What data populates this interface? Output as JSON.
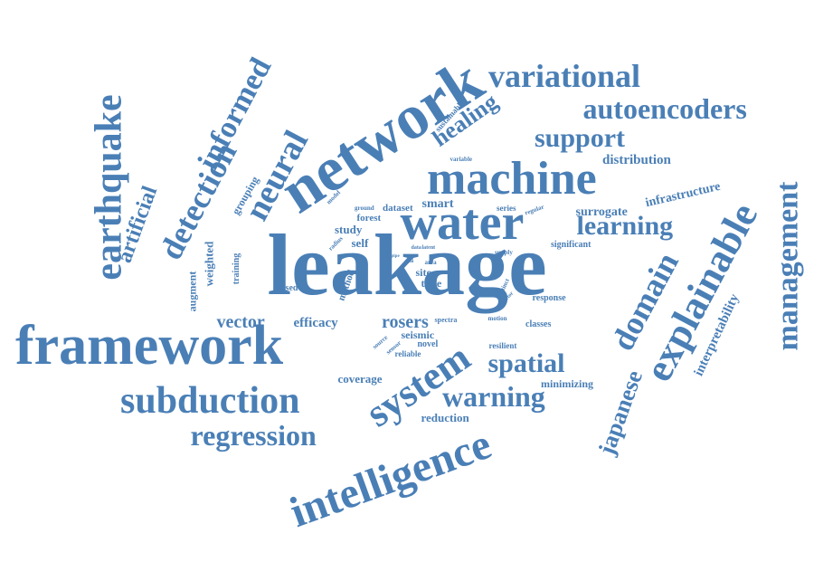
{
  "cloud": {
    "color": "#4a7fb6",
    "words": [
      {
        "id": "leakage",
        "text": "leakage"
      },
      {
        "id": "network",
        "text": "network"
      },
      {
        "id": "framework",
        "text": "framework"
      },
      {
        "id": "machine",
        "text": "machine"
      },
      {
        "id": "water",
        "text": "water"
      },
      {
        "id": "intelligence",
        "text": "intelligence"
      },
      {
        "id": "system",
        "text": "system"
      },
      {
        "id": "earthquake",
        "text": "earthquake"
      },
      {
        "id": "subduction",
        "text": "subduction"
      },
      {
        "id": "explainable",
        "text": "explainable"
      },
      {
        "id": "management",
        "text": "management"
      },
      {
        "id": "variational",
        "text": "variational"
      },
      {
        "id": "autoencoders",
        "text": "autoencoders"
      },
      {
        "id": "neural",
        "text": "neural"
      },
      {
        "id": "detection",
        "text": "detection"
      },
      {
        "id": "informed",
        "text": "informed"
      },
      {
        "id": "regression",
        "text": "regression"
      },
      {
        "id": "domain",
        "text": "domain"
      },
      {
        "id": "warning",
        "text": "warning"
      },
      {
        "id": "learning",
        "text": "learning"
      },
      {
        "id": "spatial",
        "text": "spatial"
      },
      {
        "id": "support",
        "text": "support"
      },
      {
        "id": "healing",
        "text": "healing"
      },
      {
        "id": "artificial",
        "text": "artificial"
      },
      {
        "id": "japanese",
        "text": "japanese"
      },
      {
        "id": "vector",
        "text": "vector"
      },
      {
        "id": "interpretability",
        "text": "interpretability"
      },
      {
        "id": "rosers",
        "text": "rosers"
      },
      {
        "id": "distribution",
        "text": "distribution"
      },
      {
        "id": "infrastructure",
        "text": "infrastructure"
      },
      {
        "id": "efficacy",
        "text": "efficacy"
      },
      {
        "id": "surrogate",
        "text": "surrogate"
      },
      {
        "id": "coverage",
        "text": "coverage"
      },
      {
        "id": "reduction",
        "text": "reduction"
      },
      {
        "id": "minimizing",
        "text": "minimizing"
      },
      {
        "id": "smart",
        "text": "smart"
      },
      {
        "id": "dataset",
        "text": "dataset"
      },
      {
        "id": "forest",
        "text": "forest"
      },
      {
        "id": "study",
        "text": "study"
      },
      {
        "id": "self",
        "text": "self"
      },
      {
        "id": "site",
        "text": "site"
      },
      {
        "id": "time",
        "text": "time"
      },
      {
        "id": "seismic",
        "text": "seismic"
      },
      {
        "id": "novel",
        "text": "novel"
      },
      {
        "id": "reliable",
        "text": "reliable"
      },
      {
        "id": "grouping",
        "text": "grouping"
      },
      {
        "id": "weighted",
        "text": "weighted"
      },
      {
        "id": "augment",
        "text": "augment"
      },
      {
        "id": "training",
        "text": "training"
      },
      {
        "id": "based",
        "text": "based"
      },
      {
        "id": "method",
        "text": "method"
      },
      {
        "id": "significant",
        "text": "significant"
      },
      {
        "id": "response",
        "text": "response"
      },
      {
        "id": "classes",
        "text": "classes"
      },
      {
        "id": "resilient",
        "text": "resilient"
      },
      {
        "id": "spectra",
        "text": "spectra"
      },
      {
        "id": "motion",
        "text": "motion"
      },
      {
        "id": "series",
        "text": "series"
      },
      {
        "id": "regular",
        "text": "regular"
      },
      {
        "id": "variable",
        "text": "variable"
      },
      {
        "id": "sustainable",
        "text": "sustainable"
      },
      {
        "id": "ground",
        "text": "ground"
      },
      {
        "id": "model",
        "text": "model"
      },
      {
        "id": "radius",
        "text": "radius"
      },
      {
        "id": "area",
        "text": "area"
      },
      {
        "id": "supply",
        "text": "supply"
      },
      {
        "id": "latent",
        "text": "latent"
      },
      {
        "id": "data",
        "text": "data"
      },
      {
        "id": "pipe",
        "text": "pipe"
      },
      {
        "id": "real",
        "text": "real"
      },
      {
        "id": "distinct",
        "text": "distinct"
      },
      {
        "id": "sector",
        "text": "sector"
      },
      {
        "id": "source",
        "text": "source"
      },
      {
        "id": "sensor",
        "text": "sensor"
      }
    ]
  }
}
